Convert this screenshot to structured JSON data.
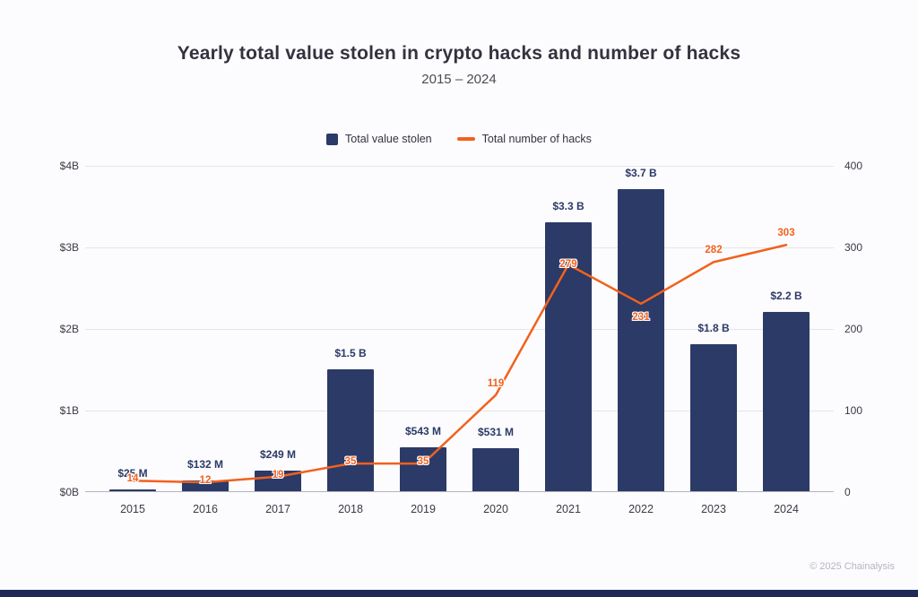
{
  "header": {
    "title": "Yearly total value stolen in crypto hacks and number of hacks",
    "subtitle": "2015 – 2024"
  },
  "legend": {
    "bars_label": "Total value stolen",
    "line_label": "Total number of hacks"
  },
  "footer": {
    "copyright": "© 2025 Chainalysis"
  },
  "colors": {
    "bar": "#2b3a67",
    "line": "#f2611d",
    "grid": "#e4e4eb",
    "strip": "#1e2a55",
    "bar_label": "#2b3a67",
    "point_label": "#f2611d"
  },
  "chart_data": {
    "type": "bar",
    "title": "Yearly total value stolen in crypto hacks and number of hacks",
    "subtitle": "2015 – 2024",
    "categories": [
      "2015",
      "2016",
      "2017",
      "2018",
      "2019",
      "2020",
      "2021",
      "2022",
      "2023",
      "2024"
    ],
    "series": [
      {
        "name": "Total value stolen",
        "type": "bar",
        "axis": "left",
        "unit": "USD billions",
        "values": [
          0.025,
          0.132,
          0.249,
          1.5,
          0.543,
          0.531,
          3.3,
          3.7,
          1.8,
          2.2
        ],
        "labels": [
          "$25 M",
          "$132 M",
          "$249 M",
          "$1.5 B",
          "$543 M",
          "$531 M",
          "$3.3 B",
          "$3.7 B",
          "$1.8 B",
          "$2.2 B"
        ]
      },
      {
        "name": "Total number of hacks",
        "type": "line",
        "axis": "right",
        "values": [
          14,
          12,
          19,
          35,
          35,
          119,
          279,
          231,
          282,
          303
        ],
        "labels": [
          "14",
          "12",
          "19",
          "35",
          "35",
          "119",
          "279",
          "231",
          "282",
          "303"
        ]
      }
    ],
    "left_axis": {
      "label": "",
      "min": 0,
      "max": 4,
      "ticks": [
        "$0B",
        "$1B",
        "$2B",
        "$3B",
        "$4B"
      ],
      "tick_values": [
        0,
        1,
        2,
        3,
        4
      ]
    },
    "right_axis": {
      "label": "",
      "min": 0,
      "max": 400,
      "ticks": [
        "0",
        "100",
        "200",
        "300",
        "400"
      ],
      "tick_values": [
        0,
        100,
        200,
        300,
        400
      ]
    },
    "grid": true,
    "legend_position": "top-center"
  }
}
